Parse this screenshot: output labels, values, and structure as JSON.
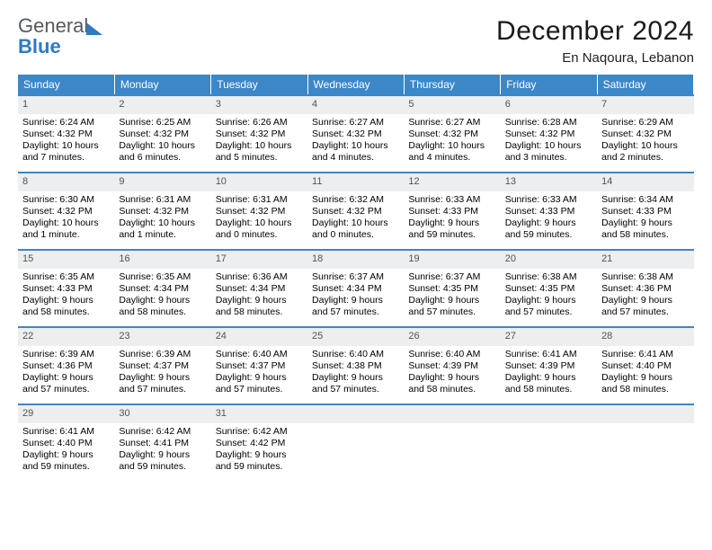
{
  "logo": {
    "word1": "General",
    "word2": "Blue"
  },
  "title": "December 2024",
  "subtitle": "En Naqoura, Lebanon",
  "colors": {
    "header_bg": "#3c87c7",
    "header_text": "#ffffff",
    "daynum_bg": "#eceeef",
    "daynum_text": "#535353",
    "row_border": "#3c87c7",
    "logo_gray": "#555a5f",
    "logo_blue": "#2f7ac0",
    "background": "#ffffff"
  },
  "weekdays": [
    "Sunday",
    "Monday",
    "Tuesday",
    "Wednesday",
    "Thursday",
    "Friday",
    "Saturday"
  ],
  "weeks": [
    [
      {
        "n": "1",
        "sr": "6:24 AM",
        "ss": "4:32 PM",
        "dl": "10 hours and 7 minutes."
      },
      {
        "n": "2",
        "sr": "6:25 AM",
        "ss": "4:32 PM",
        "dl": "10 hours and 6 minutes."
      },
      {
        "n": "3",
        "sr": "6:26 AM",
        "ss": "4:32 PM",
        "dl": "10 hours and 5 minutes."
      },
      {
        "n": "4",
        "sr": "6:27 AM",
        "ss": "4:32 PM",
        "dl": "10 hours and 4 minutes."
      },
      {
        "n": "5",
        "sr": "6:27 AM",
        "ss": "4:32 PM",
        "dl": "10 hours and 4 minutes."
      },
      {
        "n": "6",
        "sr": "6:28 AM",
        "ss": "4:32 PM",
        "dl": "10 hours and 3 minutes."
      },
      {
        "n": "7",
        "sr": "6:29 AM",
        "ss": "4:32 PM",
        "dl": "10 hours and 2 minutes."
      }
    ],
    [
      {
        "n": "8",
        "sr": "6:30 AM",
        "ss": "4:32 PM",
        "dl": "10 hours and 1 minute."
      },
      {
        "n": "9",
        "sr": "6:31 AM",
        "ss": "4:32 PM",
        "dl": "10 hours and 1 minute."
      },
      {
        "n": "10",
        "sr": "6:31 AM",
        "ss": "4:32 PM",
        "dl": "10 hours and 0 minutes."
      },
      {
        "n": "11",
        "sr": "6:32 AM",
        "ss": "4:32 PM",
        "dl": "10 hours and 0 minutes."
      },
      {
        "n": "12",
        "sr": "6:33 AM",
        "ss": "4:33 PM",
        "dl": "9 hours and 59 minutes."
      },
      {
        "n": "13",
        "sr": "6:33 AM",
        "ss": "4:33 PM",
        "dl": "9 hours and 59 minutes."
      },
      {
        "n": "14",
        "sr": "6:34 AM",
        "ss": "4:33 PM",
        "dl": "9 hours and 58 minutes."
      }
    ],
    [
      {
        "n": "15",
        "sr": "6:35 AM",
        "ss": "4:33 PM",
        "dl": "9 hours and 58 minutes."
      },
      {
        "n": "16",
        "sr": "6:35 AM",
        "ss": "4:34 PM",
        "dl": "9 hours and 58 minutes."
      },
      {
        "n": "17",
        "sr": "6:36 AM",
        "ss": "4:34 PM",
        "dl": "9 hours and 58 minutes."
      },
      {
        "n": "18",
        "sr": "6:37 AM",
        "ss": "4:34 PM",
        "dl": "9 hours and 57 minutes."
      },
      {
        "n": "19",
        "sr": "6:37 AM",
        "ss": "4:35 PM",
        "dl": "9 hours and 57 minutes."
      },
      {
        "n": "20",
        "sr": "6:38 AM",
        "ss": "4:35 PM",
        "dl": "9 hours and 57 minutes."
      },
      {
        "n": "21",
        "sr": "6:38 AM",
        "ss": "4:36 PM",
        "dl": "9 hours and 57 minutes."
      }
    ],
    [
      {
        "n": "22",
        "sr": "6:39 AM",
        "ss": "4:36 PM",
        "dl": "9 hours and 57 minutes."
      },
      {
        "n": "23",
        "sr": "6:39 AM",
        "ss": "4:37 PM",
        "dl": "9 hours and 57 minutes."
      },
      {
        "n": "24",
        "sr": "6:40 AM",
        "ss": "4:37 PM",
        "dl": "9 hours and 57 minutes."
      },
      {
        "n": "25",
        "sr": "6:40 AM",
        "ss": "4:38 PM",
        "dl": "9 hours and 57 minutes."
      },
      {
        "n": "26",
        "sr": "6:40 AM",
        "ss": "4:39 PM",
        "dl": "9 hours and 58 minutes."
      },
      {
        "n": "27",
        "sr": "6:41 AM",
        "ss": "4:39 PM",
        "dl": "9 hours and 58 minutes."
      },
      {
        "n": "28",
        "sr": "6:41 AM",
        "ss": "4:40 PM",
        "dl": "9 hours and 58 minutes."
      }
    ],
    [
      {
        "n": "29",
        "sr": "6:41 AM",
        "ss": "4:40 PM",
        "dl": "9 hours and 59 minutes."
      },
      {
        "n": "30",
        "sr": "6:42 AM",
        "ss": "4:41 PM",
        "dl": "9 hours and 59 minutes."
      },
      {
        "n": "31",
        "sr": "6:42 AM",
        "ss": "4:42 PM",
        "dl": "9 hours and 59 minutes."
      },
      null,
      null,
      null,
      null
    ]
  ],
  "labels": {
    "sunrise": "Sunrise:",
    "sunset": "Sunset:",
    "daylight": "Daylight:"
  }
}
